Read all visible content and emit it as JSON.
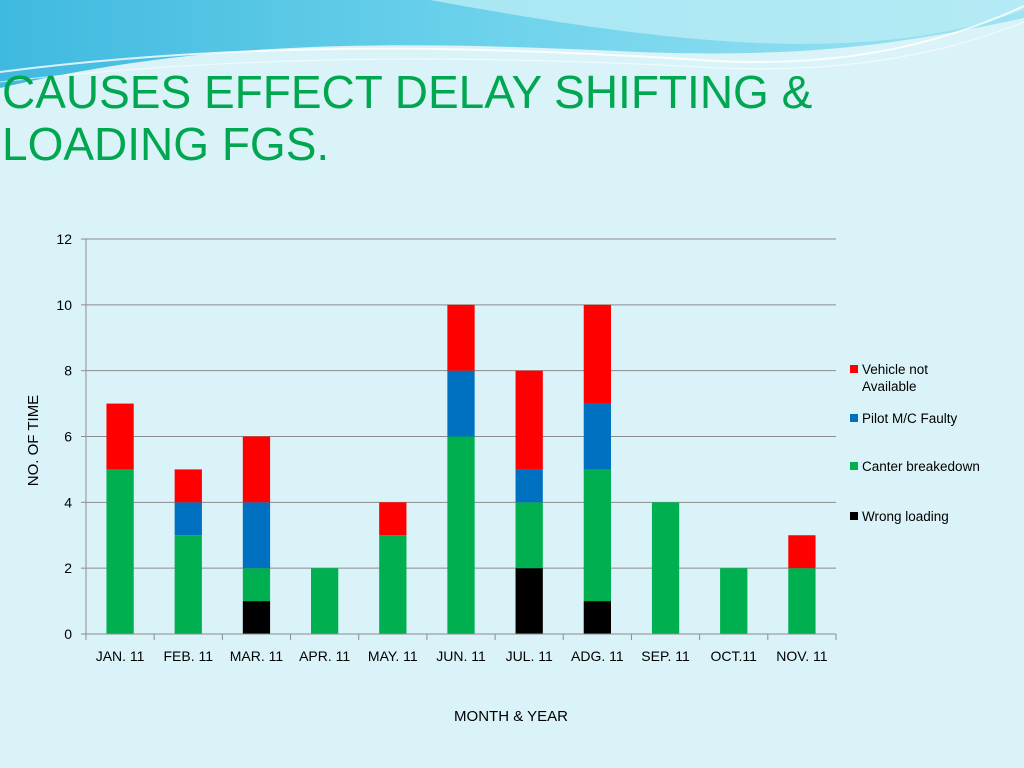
{
  "slide": {
    "title": "CAUSES EFFECT DELAY SHIFTING &\nLOADING FGS."
  },
  "chart_data": {
    "type": "bar",
    "stacked": true,
    "title": "",
    "xlabel": "MONTH & YEAR",
    "ylabel": "NO. OF TIME",
    "ylim": [
      0,
      12
    ],
    "yticks": [
      0,
      2,
      4,
      6,
      8,
      10,
      12
    ],
    "grid": true,
    "legend_position": "right",
    "categories": [
      "JAN. 11",
      "FEB. 11",
      "MAR. 11",
      "APR. 11",
      "MAY. 11",
      "JUN. 11",
      "JUL. 11",
      "ADG. 11",
      "SEP. 11",
      "OCT.11",
      "NOV. 11"
    ],
    "series": [
      {
        "name": "Wrong loading",
        "color": "#000000",
        "values": [
          0,
          0,
          1,
          0,
          0,
          0,
          2,
          1,
          0,
          0,
          0
        ]
      },
      {
        "name": "Canter breakedown",
        "color": "#00b050",
        "values": [
          5,
          3,
          1,
          2,
          3,
          6,
          2,
          4,
          4,
          2,
          2
        ]
      },
      {
        "name": "Pilot M/C Faulty",
        "color": "#0070c0",
        "values": [
          0,
          1,
          2,
          0,
          0,
          2,
          1,
          2,
          0,
          0,
          0
        ]
      },
      {
        "name": "Vehicle not Available",
        "color": "#ff0000",
        "values": [
          2,
          1,
          2,
          0,
          1,
          2,
          3,
          3,
          0,
          0,
          1
        ]
      }
    ],
    "legend_order": [
      "Vehicle not Available",
      "Pilot M/C Faulty",
      "Canter breakedown",
      "Wrong loading"
    ]
  }
}
